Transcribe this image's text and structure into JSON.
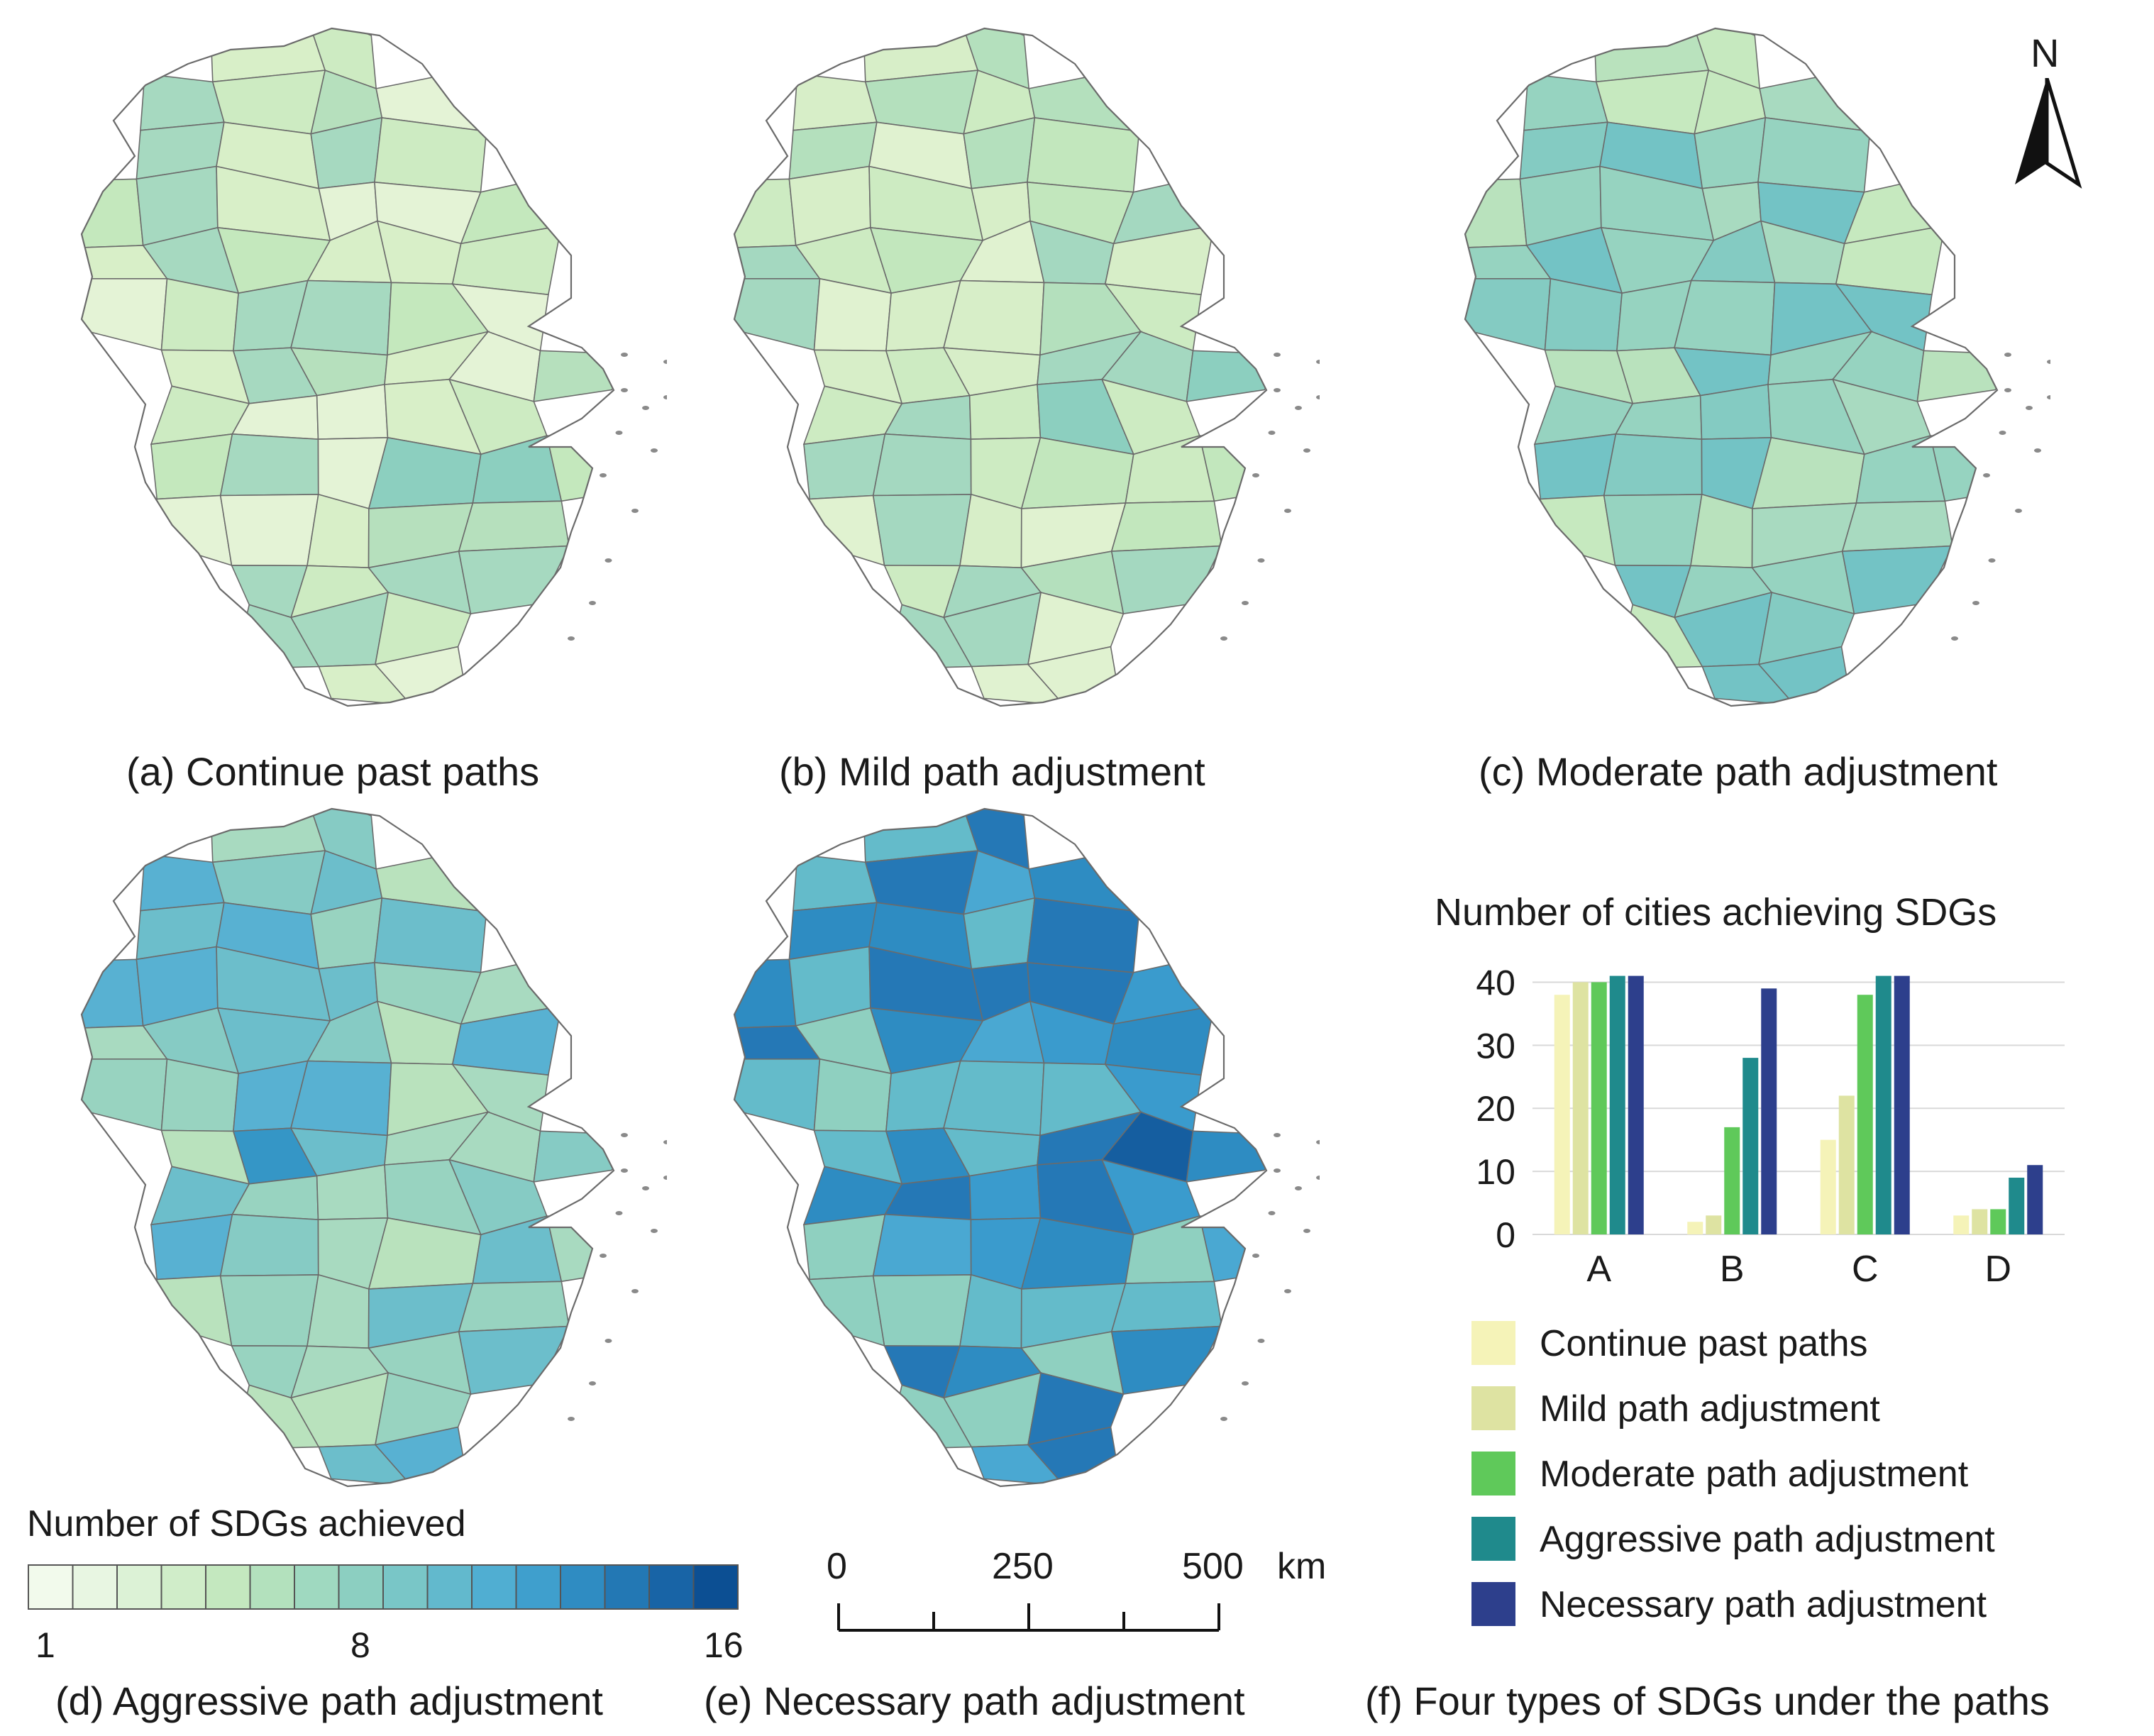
{
  "panels": [
    {
      "caption": "(a) Continue past paths",
      "palette": [
        "#e4f3d6",
        "#d8efc8",
        "#cdebc2",
        "#c4e8bd",
        "#b6e0bd",
        "#a6d9c0",
        "#8ccfbf"
      ]
    },
    {
      "caption": "(b) Mild path adjustment",
      "palette": [
        "#e0f2d0",
        "#d7eec8",
        "#cdebc2",
        "#c2e7bd",
        "#b4e0bd",
        "#a4d8c0",
        "#8ccfbf"
      ]
    },
    {
      "caption": "(c) Moderate path adjustment",
      "palette": [
        "#c6e9bf",
        "#b9e2bd",
        "#a8dac0",
        "#96d3c0",
        "#84cbc2",
        "#73c3c5",
        "#5eb7cc"
      ]
    },
    {
      "caption": "(d) Aggressive path adjustment",
      "palette": [
        "#b9e2bd",
        "#a8dac0",
        "#98d3c0",
        "#86cbc4",
        "#6cbecb",
        "#58b1d2",
        "#3596c6"
      ]
    },
    {
      "caption": "(e) Necessary path adjustment",
      "palette": [
        "#8fd0c0",
        "#64bbca",
        "#4aa8d2",
        "#3a9bcd",
        "#2e8cc2",
        "#2578b6",
        "#155ea0"
      ]
    }
  ],
  "legend": {
    "title": "Number of SDGs achieved",
    "min_label": "1",
    "mid_label": "8",
    "max_label": "16",
    "colors": [
      "#f2faec",
      "#e8f6e2",
      "#dcf2d6",
      "#d0edc9",
      "#c4e8bf",
      "#b3e1bd",
      "#9fd9c0",
      "#8ccfc1",
      "#79c6c7",
      "#62b9cd",
      "#50aed2",
      "#3f9fcd",
      "#2f8cc2",
      "#2378b4",
      "#1864a6",
      "#0c4f93"
    ]
  },
  "scale_bar": {
    "labels": [
      "0",
      "250",
      "500"
    ],
    "unit": "km"
  },
  "north_arrow": {
    "label": "N",
    "icon": "north-arrow-icon"
  },
  "chart_caption": "(f) Four types of SDGs under the paths",
  "chart_data": {
    "type": "bar",
    "title": "Number of cities achieving SDGs",
    "categories": [
      "A",
      "B",
      "C",
      "D"
    ],
    "ylim": [
      0,
      45
    ],
    "yticks": [
      0,
      10,
      20,
      30,
      40
    ],
    "grid": true,
    "legend_placement": "bottom",
    "series": [
      {
        "name": "Continue past paths",
        "color": "#f5f3b8",
        "values": [
          38,
          2,
          15,
          3
        ]
      },
      {
        "name": "Mild path adjustment",
        "color": "#dee3a2",
        "values": [
          40,
          3,
          22,
          4
        ]
      },
      {
        "name": "Moderate path adjustment",
        "color": "#5fc95a",
        "values": [
          40,
          17,
          38,
          4
        ]
      },
      {
        "name": "Aggressive path adjustment",
        "color": "#1f8a8c",
        "values": [
          41,
          28,
          41,
          9
        ]
      },
      {
        "name": "Necessary path adjustment",
        "color": "#2d3f8c",
        "values": [
          41,
          39,
          41,
          11
        ]
      }
    ]
  }
}
